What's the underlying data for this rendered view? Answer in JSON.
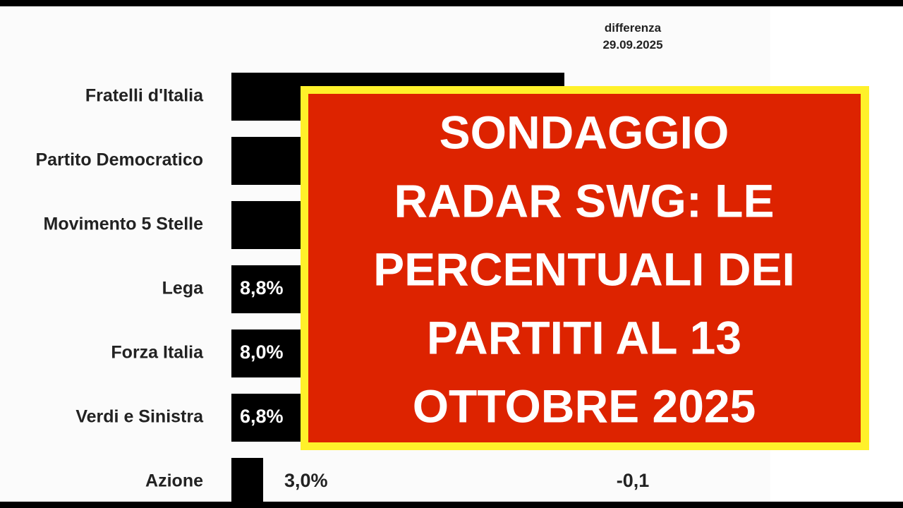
{
  "chart": {
    "header": [
      "differenza",
      "29.09.2025"
    ],
    "rows": [
      {
        "party": "Fratelli d'Italia"
      },
      {
        "party": "Partito Democratico"
      },
      {
        "party": "Movimento 5 Stelle"
      },
      {
        "party": "Lega",
        "value": 8.8,
        "value_label": "8,8%"
      },
      {
        "party": "Forza Italia",
        "value": 8.0,
        "value_label": "8,0%"
      },
      {
        "party": "Verdi e Sinistra",
        "value": 6.8,
        "value_label": "6,8%"
      },
      {
        "party": "Azione",
        "value": 3.0,
        "value_label": "3,0%",
        "diff": "-0,1"
      }
    ]
  },
  "overlay": {
    "lines": [
      "SONDAGGIO",
      "RADAR SWG: LE",
      "PERCENTUALI DEI",
      "PARTITI AL 13",
      "OTTOBRE 2025"
    ]
  }
}
